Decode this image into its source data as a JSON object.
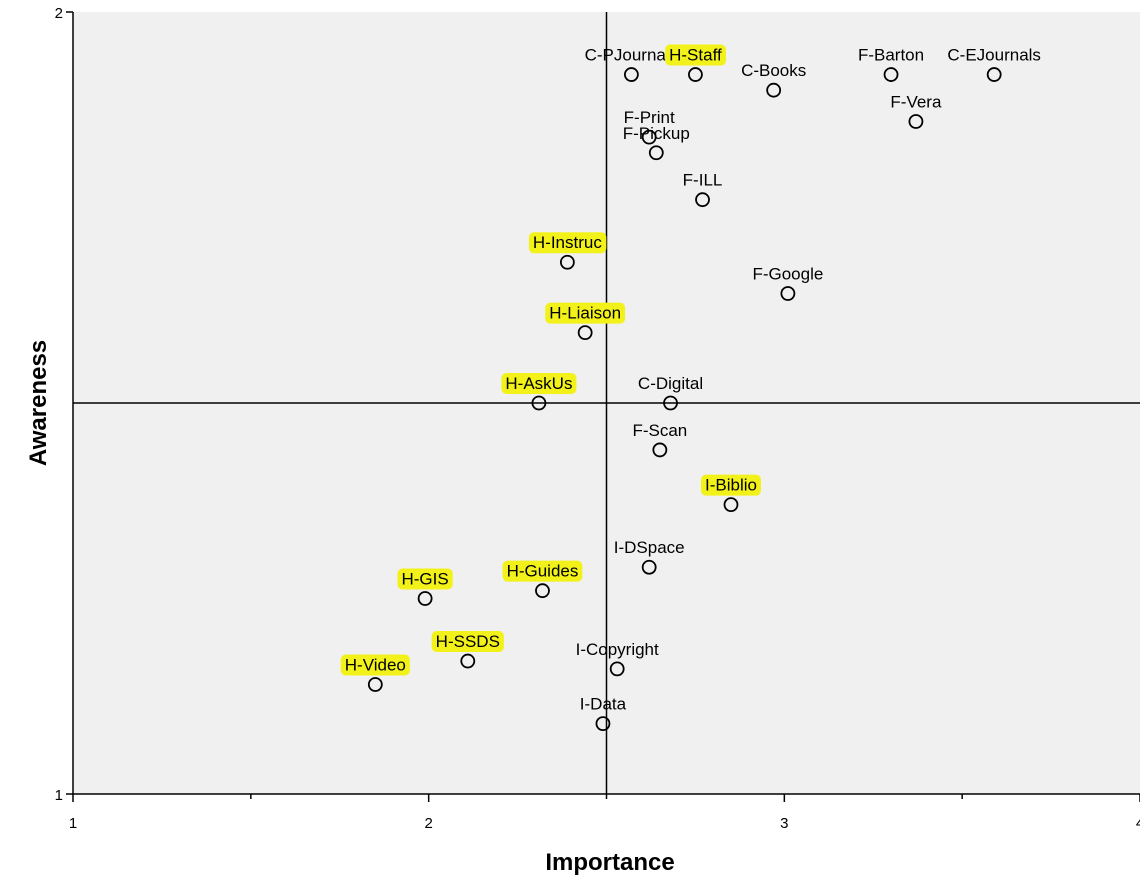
{
  "chart_data": {
    "type": "scatter",
    "title": "",
    "xlabel": "Importance",
    "ylabel": "Awareness",
    "xlim": [
      1,
      4
    ],
    "ylim": [
      1,
      2
    ],
    "x_ticks": [
      {
        "value": 1,
        "label": "1"
      },
      {
        "value": 2,
        "label": "2"
      },
      {
        "value": 3,
        "label": "3"
      },
      {
        "value": 4,
        "label": "4"
      }
    ],
    "x_minor_ticks": [
      1.5,
      2.5,
      3.5
    ],
    "y_ticks": [
      {
        "value": 1,
        "label": "1"
      },
      {
        "value": 2,
        "label": "2"
      }
    ],
    "reference_lines": {
      "x": 2.5,
      "y": 1.5
    },
    "grid": false,
    "legend": "none",
    "colors": {
      "plot_background": "#f0f0f0",
      "highlight": "#f2f21a",
      "marker_stroke": "#000000",
      "text": "#000000"
    },
    "points": [
      {
        "label": "C-PJournals",
        "x": 2.57,
        "y": 1.92,
        "highlight": false
      },
      {
        "label": "H-Staff",
        "x": 2.75,
        "y": 1.92,
        "highlight": true
      },
      {
        "label": "C-Books",
        "x": 2.97,
        "y": 1.9,
        "highlight": false
      },
      {
        "label": "F-Barton",
        "x": 3.3,
        "y": 1.92,
        "highlight": false
      },
      {
        "label": "C-EJournals",
        "x": 3.59,
        "y": 1.92,
        "highlight": false
      },
      {
        "label": "F-Vera",
        "x": 3.37,
        "y": 1.86,
        "highlight": false
      },
      {
        "label": "F-Print",
        "x": 2.62,
        "y": 1.84,
        "highlight": false
      },
      {
        "label": "F-Pickup",
        "x": 2.64,
        "y": 1.82,
        "highlight": false
      },
      {
        "label": "F-ILL",
        "x": 2.77,
        "y": 1.76,
        "highlight": false
      },
      {
        "label": "H-Instruc",
        "x": 2.39,
        "y": 1.68,
        "highlight": true
      },
      {
        "label": "F-Google",
        "x": 3.01,
        "y": 1.64,
        "highlight": false
      },
      {
        "label": "H-Liaison",
        "x": 2.44,
        "y": 1.59,
        "highlight": true
      },
      {
        "label": "H-AskUs",
        "x": 2.31,
        "y": 1.5,
        "highlight": true
      },
      {
        "label": "C-Digital",
        "x": 2.68,
        "y": 1.5,
        "highlight": false
      },
      {
        "label": "F-Scan",
        "x": 2.65,
        "y": 1.44,
        "highlight": false
      },
      {
        "label": "I-Biblio",
        "x": 2.85,
        "y": 1.37,
        "highlight": true
      },
      {
        "label": "I-DSpace",
        "x": 2.62,
        "y": 1.29,
        "highlight": false
      },
      {
        "label": "H-Guides",
        "x": 2.32,
        "y": 1.26,
        "highlight": true
      },
      {
        "label": "H-GIS",
        "x": 1.99,
        "y": 1.25,
        "highlight": true
      },
      {
        "label": "H-SSDS",
        "x": 2.11,
        "y": 1.17,
        "highlight": true
      },
      {
        "label": "H-Video",
        "x": 1.85,
        "y": 1.14,
        "highlight": true
      },
      {
        "label": "I-Copyright",
        "x": 2.53,
        "y": 1.16,
        "highlight": false
      },
      {
        "label": "I-Data",
        "x": 2.49,
        "y": 1.09,
        "highlight": false
      }
    ]
  }
}
